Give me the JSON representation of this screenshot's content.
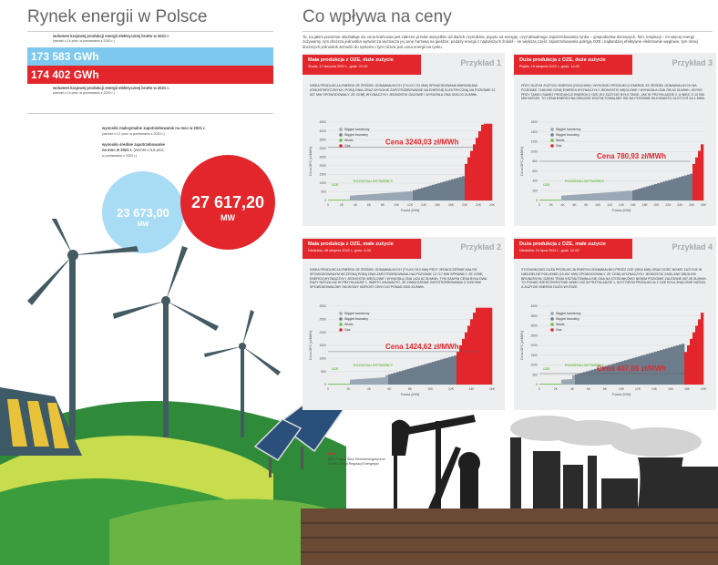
{
  "left": {
    "title": "Rynek energii w Polsce",
    "prod_label": "wolumen krajowej produkcji energii elektrycznej brutto w 2021 r.",
    "prod_change": "(wzrost o 14 proc. w porównaniu z 2020 r.)",
    "prod_value": "173 583 GWh",
    "cons_value": "174 402 GWh",
    "cons_label": "wolumen krajowej produkcji energii elektrycznej brutto w 2021 r.",
    "cons_change": "(wzrost o 14 proc. w porównaniu z 2020 r.)",
    "max_label": "wynosiło maksymalne zapotrzebowanie na moc w 2021 r.",
    "max_change": "(wzrost o 3,1 proc. w porównaniu z 2020 r.)",
    "avg_label_1": "wynosiło średnie zapotrzebowanie",
    "avg_label_2": "na moc w 2021 r.",
    "avg_change_a": "(wzrost o 5,6 proc.",
    "avg_change_b": "w porównaniu z 2020 r.)",
    "avg_value": "23 673,00",
    "avg_unit": "MW",
    "max_value": "27 617,20",
    "max_unit": "MW",
    "credits_1": "PAP, Polskie Sieci Elektroenergetyczne",
    "credits_2": "Źródło: Urząd Regulacji Energetyki",
    "credits_tag": "BIR ▸"
  },
  "right": {
    "title": "Co wpływa na ceny",
    "intro": "To, na jakim poziomie ukształtuje się cena krańcowa jest zależne przede wszystkim od dwóch czynników: popytu na energię, czyli aktualnego zapotrzebowania rynku – gospodarstw domowych, firm, instytucji – im więcej energii zużywamy, tym droższa jednostka wytwórcza wyznacza jej cenę hurtową na giełdzie; podaży energii z najtańszych źródeł – im większą część zapotrzebowania pokryją OZE i najbardziej efektywne elektrownie węglowe, tym mniej droższych jednostek wchodzi do systemu i tym niższa jest cena energii na rynku."
  },
  "legend": [
    "Węgiel kamienny",
    "Węgiel brunatny",
    "Woda",
    "Gaz"
  ],
  "colors": {
    "hard": "#9aa7b4",
    "brown": "#6e7d8c",
    "water": "#6cc04a",
    "gas": "#e3262b",
    "red": "#e3262b",
    "blue": "#7ec8ef"
  },
  "axis": {
    "ylabel": "Cena OFC [zł/MWh]",
    "xlabel": "Podaż [MW]",
    "oze": "OZE",
    "others": "POZOSTALI WYTWÓRCY"
  },
  "cards": [
    {
      "head": "Mała produkcja z OZE, duże zużycie",
      "date": "Środa, 17 sierpnia 2022 r., godz. 21.00",
      "example": "Przykład 1",
      "desc": "NISKA PRODUKCJA ENERGII ZE ŹRÓDEŁ ODNAWIALNYCH (TYLKO 711 MW) SPOWODOWANA WARUNKAMI ATMOSFERYCZNYMI I PORĄ DNIA ORAZ WYSOKIE ZAPOTRZEBOWANIE NA ENERGIĘ ELEKTRYCZNĄ NA POZIOMIE 22 837 MW SPOWODOWAŁY, ŻE CENĘ WYZNACZYŁY JEDNOSTKI GAZOWE I WYNIOSŁA ONA 3240,03 ZŁ/MWh.",
      "price": "Cena 3240,03 zł/MWh",
      "yticks": [
        "0",
        "500",
        "1000",
        "1500",
        "2000",
        "2500",
        "3000",
        "3500",
        "4000",
        "4500"
      ],
      "xticks": [
        "0",
        "2K",
        "4K",
        "6K",
        "8K",
        "10K",
        "12K",
        "14K",
        "16K",
        "18K",
        "20K",
        "22K",
        "24K"
      ]
    },
    {
      "head": "Duża produkcja z OZE, duże zużycie",
      "date": "Piątek, 19 sierpnia 2022 r., godz. 14.00",
      "example": "Przykład 3",
      "desc": "PRZY DUŻYM ZUŻYCIU ENERGII (23116 MW) I WYSOKIEJ PRODUKCJI ENERGII ZE ŹRÓDEŁ ODNAWIALNYCH NA POZIOMIE 7185 MW CENĘ ENERGII WYZNACZYŁY JEDNOSTKI WĘGLOWE I WYNIOSŁA ONA 780,93 ZŁ/MWh. GDYBY PRZY TAKIEJ SAMEJ PRODUKCJI ENERGII Z OZE JEJ ZUŻYCIE BYŁO TAKIE, JAK W PRZYKŁADZIE 2, A WIĘC O 10 000 MW NIŻSZE, TO CENA ENERGII NA GIEŁDZIE KSZTAŁTOWAŁABY SIĘ NA POZIOMIE KILKUNASTU ZŁOTYCH ZA 1 MWh.",
      "price": "Cena 780,93 zł/MWh",
      "yticks": [
        "0",
        "200",
        "400",
        "600",
        "800",
        "1000",
        "1200",
        "1400",
        "1600"
      ],
      "xticks": [
        "0",
        "2K",
        "4K",
        "6K",
        "8K",
        "10K",
        "12K",
        "14K",
        "16K",
        "18K",
        "20K",
        "22K",
        "24K",
        "26K",
        "28K"
      ]
    },
    {
      "head": "Mała produkcja z OZE, małe zużycie",
      "date": "Niedziela, 28 sierpnia 2022 r., godz. 6.00",
      "example": "Przykład 2",
      "desc": "NISKA PRODUKCJA ENERGII ZE ŹRÓDEŁ ODNAWIALNYCH (TYLKO 513 MW) PRZY JEDNOCZEŚNIE MAŁYM SPOWODOWANYM WCZESNĄ PORĄ DNIA ZAPOTRZEBOWANIU NA POZIOMIE 13 717 MW SPRAWIŁY, ŻE CENĘ ENERGII WYZNACZYŁY JEDNOSTKI WĘGLOWE I WYNIOSŁA ONA 1424,62 ZŁ/MWh, TYM SAMYM CENA BYŁA DWA RAZY NIŻSZA NIŻ W PRZYKŁADZIE 1. WARTO ZAUWAŻYĆ, ŻE ZWIĘKSZENIE ZAPOTRZEBOWANIA O 1000 MW SPOWODOWAŁOBY SKOKOWY WZROST CENY DO PONAD 2000 ZŁ/MWh.",
      "price": "Cena 1424,62 zł/MWh",
      "yticks": [
        "0",
        "500",
        "1000",
        "1500",
        "2000",
        "2500",
        "3000"
      ],
      "xticks": [
        "0",
        "2K",
        "4K",
        "6K",
        "8K",
        "10K",
        "12K",
        "14K",
        "16K"
      ]
    },
    {
      "head": "Duża produkcja z OZE, małe zużycie",
      "date": "Niedziela, 10 lipca 2022 r., godz. 12.00",
      "example": "Przykład 4",
      "desc": "STOSUNKOWO DUŻA PRODUKCJA ENERGII ODNAWIALNEJ PRZEZ OZE (3916 MW) ORAZ DOŚĆ NISKIE ZUŻYCIE W NIEDZIELNE POŁUDNIE (15 837 MW) SPOWODOWAŁY, ŻE CENĘ WYZNACZYŁY JEDNOSTKI ZASILANE WĘGLEM BRUNATNYM. DZIĘKI TEMU KSZTAŁTOWAŁA SIĘ ONA NA STOSUNKOWO NISKIM POZIOMIE ZALEDWIE 487,05 ZŁ/MWh. TO PONAD SZEŚCIOKROTNIE MNIEJ NIŻ W PRZYKŁADZIE 1, W KTÓRYM PRODUKCJA Z OZE BYŁA ZNACZNIE NIŻSZA, A ZUŻYCIE ENERGII DUŻO WYŻSZE.",
      "price": "Cena 487,05 zł/MWh",
      "yticks": [
        "0",
        "500",
        "1000",
        "1500",
        "2000",
        "2500",
        "3000",
        "3500",
        "4000"
      ],
      "xticks": [
        "0",
        "2K",
        "4K",
        "6K",
        "8K",
        "10K",
        "12K",
        "14K",
        "16K",
        "18K",
        "20K"
      ]
    }
  ]
}
